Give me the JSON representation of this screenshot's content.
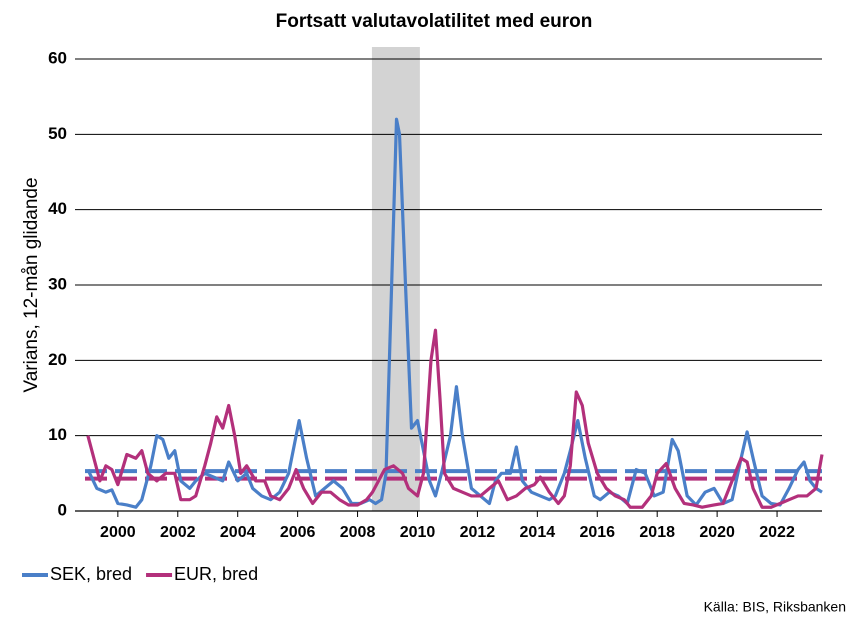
{
  "chart_data": {
    "type": "line",
    "title": "Fortsatt valutavolatilitet med euron",
    "ylabel": "Varians, 12-mån glidande",
    "source": "Källa: BIS, Riksbanken",
    "xlim": [
      1998.57,
      2023.5
    ],
    "ylim": [
      0,
      60
    ],
    "xticks": [
      2000,
      2002,
      2004,
      2006,
      2008,
      2010,
      2012,
      2014,
      2016,
      2018,
      2020,
      2022
    ],
    "yticks": [
      0,
      10,
      20,
      30,
      40,
      50,
      60
    ],
    "grid": true,
    "legend": "bottom",
    "shaded": {
      "x": [
        2008.48,
        2010.08
      ],
      "color": "#d3d3d3"
    },
    "hlines": [
      {
        "value": 5.3,
        "color": "#4a7fc8"
      },
      {
        "value": 4.3,
        "color": "#b3307b"
      }
    ],
    "series": [
      {
        "name": "SEK, bred",
        "color": "#4a7fc8",
        "x": [
          1999.0,
          1999.3,
          1999.6,
          1999.8,
          2000.0,
          2000.3,
          2000.6,
          2000.8,
          2001.1,
          2001.3,
          2001.5,
          2001.7,
          2001.9,
          2002.1,
          2002.4,
          2002.6,
          2002.9,
          2003.2,
          2003.5,
          2003.7,
          2004.0,
          2004.3,
          2004.5,
          2004.8,
          2005.1,
          2005.4,
          2005.7,
          2005.9,
          2006.05,
          2006.3,
          2006.6,
          2006.9,
          2007.2,
          2007.5,
          2007.8,
          2008.1,
          2008.4,
          2008.6,
          2008.8,
          2008.95,
          2009.1,
          2009.3,
          2009.4,
          2009.6,
          2009.8,
          2010.0,
          2010.2,
          2010.4,
          2010.6,
          2010.8,
          2011.1,
          2011.3,
          2011.5,
          2011.8,
          2012.1,
          2012.4,
          2012.6,
          2012.8,
          2013.1,
          2013.3,
          2013.5,
          2013.8,
          2014.1,
          2014.4,
          2014.6,
          2014.9,
          2015.1,
          2015.35,
          2015.6,
          2015.9,
          2016.1,
          2016.4,
          2016.7,
          2017.0,
          2017.3,
          2017.6,
          2017.9,
          2018.2,
          2018.5,
          2018.7,
          2019.0,
          2019.3,
          2019.6,
          2019.9,
          2020.2,
          2020.5,
          2020.8,
          2021.0,
          2021.2,
          2021.5,
          2021.8,
          2022.1,
          2022.4,
          2022.7,
          2022.9,
          2023.1,
          2023.3,
          2023.5
        ],
        "values": [
          5.5,
          3,
          2.5,
          2.8,
          1,
          0.8,
          0.5,
          1.5,
          6,
          10,
          9.5,
          7,
          8,
          4,
          3,
          4,
          5,
          4.5,
          4,
          6.5,
          4,
          5,
          3,
          2,
          1.5,
          2.5,
          5,
          9,
          12,
          7,
          2,
          3,
          4,
          3,
          1,
          1,
          1.5,
          1,
          1.5,
          5,
          25,
          52,
          50,
          30,
          11,
          12,
          8,
          4,
          2,
          5,
          10,
          16.5,
          10,
          3,
          2,
          1,
          4,
          5,
          5,
          8.5,
          4,
          2.5,
          2,
          1.5,
          2,
          5,
          8,
          12,
          7,
          2,
          1.5,
          2.5,
          2,
          1,
          5.5,
          5,
          2,
          2.5,
          9.5,
          8,
          2,
          0.8,
          2.5,
          3,
          1,
          1.5,
          7,
          10.5,
          7,
          2,
          1,
          0.8,
          3,
          5.5,
          6.5,
          4,
          3,
          2.5
        ]
      },
      {
        "name": "EUR, bred",
        "color": "#b3307b",
        "x": [
          1999.0,
          1999.2,
          1999.4,
          1999.6,
          1999.8,
          2000.0,
          2000.3,
          2000.6,
          2000.8,
          2001.0,
          2001.3,
          2001.6,
          2001.9,
          2002.1,
          2002.4,
          2002.6,
          2002.9,
          2003.1,
          2003.3,
          2003.5,
          2003.7,
          2003.9,
          2004.1,
          2004.3,
          2004.6,
          2004.9,
          2005.1,
          2005.4,
          2005.7,
          2005.95,
          2006.2,
          2006.5,
          2006.8,
          2007.1,
          2007.4,
          2007.7,
          2008.0,
          2008.3,
          2008.5,
          2008.7,
          2008.9,
          2009.2,
          2009.5,
          2009.7,
          2010.0,
          2010.2,
          2010.45,
          2010.6,
          2010.75,
          2010.9,
          2011.2,
          2011.5,
          2011.8,
          2012.1,
          2012.4,
          2012.7,
          2013.0,
          2013.3,
          2013.6,
          2013.9,
          2014.1,
          2014.4,
          2014.7,
          2014.9,
          2015.1,
          2015.3,
          2015.5,
          2015.7,
          2016.0,
          2016.3,
          2016.6,
          2016.9,
          2017.1,
          2017.5,
          2017.8,
          2018.0,
          2018.3,
          2018.6,
          2018.9,
          2019.2,
          2019.5,
          2019.9,
          2020.2,
          2020.5,
          2020.8,
          2021.0,
          2021.2,
          2021.5,
          2021.8,
          2022.1,
          2022.4,
          2022.7,
          2023.0,
          2023.3,
          2023.5
        ],
        "values": [
          10,
          7,
          4,
          6,
          5.5,
          3.5,
          7.5,
          7,
          8,
          5,
          4,
          5,
          5,
          1.5,
          1.5,
          2,
          6,
          9,
          12.5,
          11,
          14,
          10,
          5,
          6,
          4,
          4,
          2,
          1.5,
          3,
          5.5,
          3,
          1,
          2.5,
          2.5,
          1.5,
          0.8,
          0.8,
          1.5,
          2.5,
          4,
          5.5,
          6,
          5,
          3,
          2,
          5,
          20,
          24,
          15,
          5,
          3,
          2.5,
          2,
          2,
          3,
          4,
          1.5,
          2,
          3,
          3.5,
          4.5,
          2.5,
          1,
          2,
          6,
          15.8,
          14,
          9,
          5,
          3,
          2,
          1.5,
          0.5,
          0.5,
          2,
          5,
          6.3,
          3,
          1,
          0.8,
          0.5,
          0.8,
          1,
          4,
          7,
          6.5,
          3,
          0.5,
          0.5,
          1,
          1.5,
          2,
          2,
          3,
          7.5
        ]
      }
    ]
  }
}
